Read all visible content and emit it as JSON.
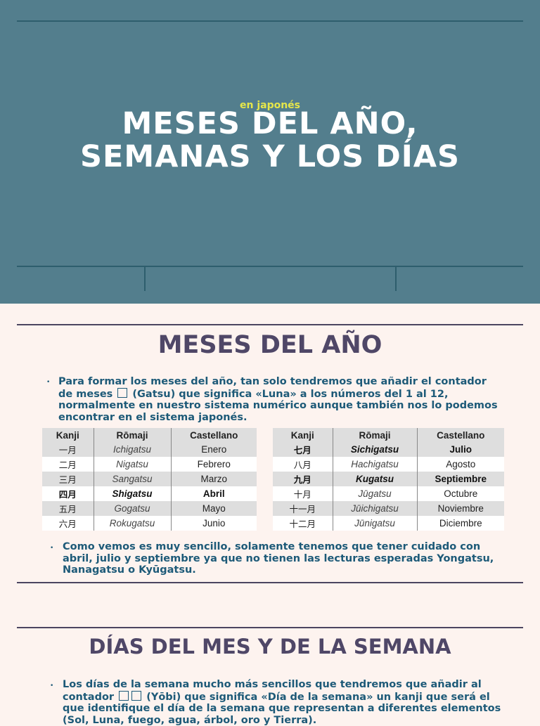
{
  "hero": {
    "subtitle": "en japonés",
    "title_line1": "MESES DEL AÑO,",
    "title_line2": "SEMANAS Y LOS DÍAS"
  },
  "section1": {
    "title": "MESES DEL AÑO",
    "intro_before": "Para formar los meses del año, tan solo tendremos que añadir el contador de meses ",
    "intro_after": " (Gatsu) que significa «Luna» a los números del 1 al 12, normalmente en nuestro sistema numérico aunque también nos lo podemos encontrar en el sistema japonés.",
    "table_left": {
      "headers": [
        "Kanji",
        "Rōmaji",
        "Castellano"
      ],
      "rows": [
        [
          "一月",
          "Ichigatsu",
          "Enero"
        ],
        [
          "二月",
          "Nigatsu",
          "Febrero"
        ],
        [
          "三月",
          "Sangatsu",
          "Marzo"
        ],
        [
          "四月",
          "Shigatsu",
          "Abril"
        ],
        [
          "五月",
          "Gogatsu",
          "Mayo"
        ],
        [
          "六月",
          "Rokugatsu",
          "Junio"
        ]
      ]
    },
    "table_right": {
      "headers": [
        "Kanji",
        "Rōmaji",
        "Castellano"
      ],
      "rows": [
        [
          "七月",
          "Sichigatsu",
          "Julio"
        ],
        [
          "八月",
          "Hachigatsu",
          "Agosto"
        ],
        [
          "九月",
          "Kugatsu",
          "Septiembre"
        ],
        [
          "十月",
          "Jūgatsu",
          "Octubre"
        ],
        [
          "十一月",
          "Jūichigatsu",
          "Noviembre"
        ],
        [
          "十二月",
          "Jūnigatsu",
          "Diciembre"
        ]
      ]
    },
    "note": "Como vemos es muy sencillo, solamente tenemos que tener cuidado con abril, julio y septiembre ya que no tienen las lecturas esperadas Yongatsu, Nanagatsu o Kyūgatsu."
  },
  "section2": {
    "title": "DÍAS DEL MES Y DE LA SEMANA",
    "intro_before": "Los días de la semana mucho más sencillos que tendremos que añadir al contador ",
    "intro_after": " (Yōbi) que significa «Día de la semana» un kanji que será el que identifique el día de la semana que representan a diferentes elementos (Sol, Luna, fuego, agua, árbol, oro y Tierra)."
  },
  "colors": {
    "hero_bg": "#537e8d",
    "page_bg": "#fdf3ef",
    "title_color": "#4f4767",
    "body_text": "#1d5a78",
    "subtitle_yellow": "#e6e64a"
  }
}
